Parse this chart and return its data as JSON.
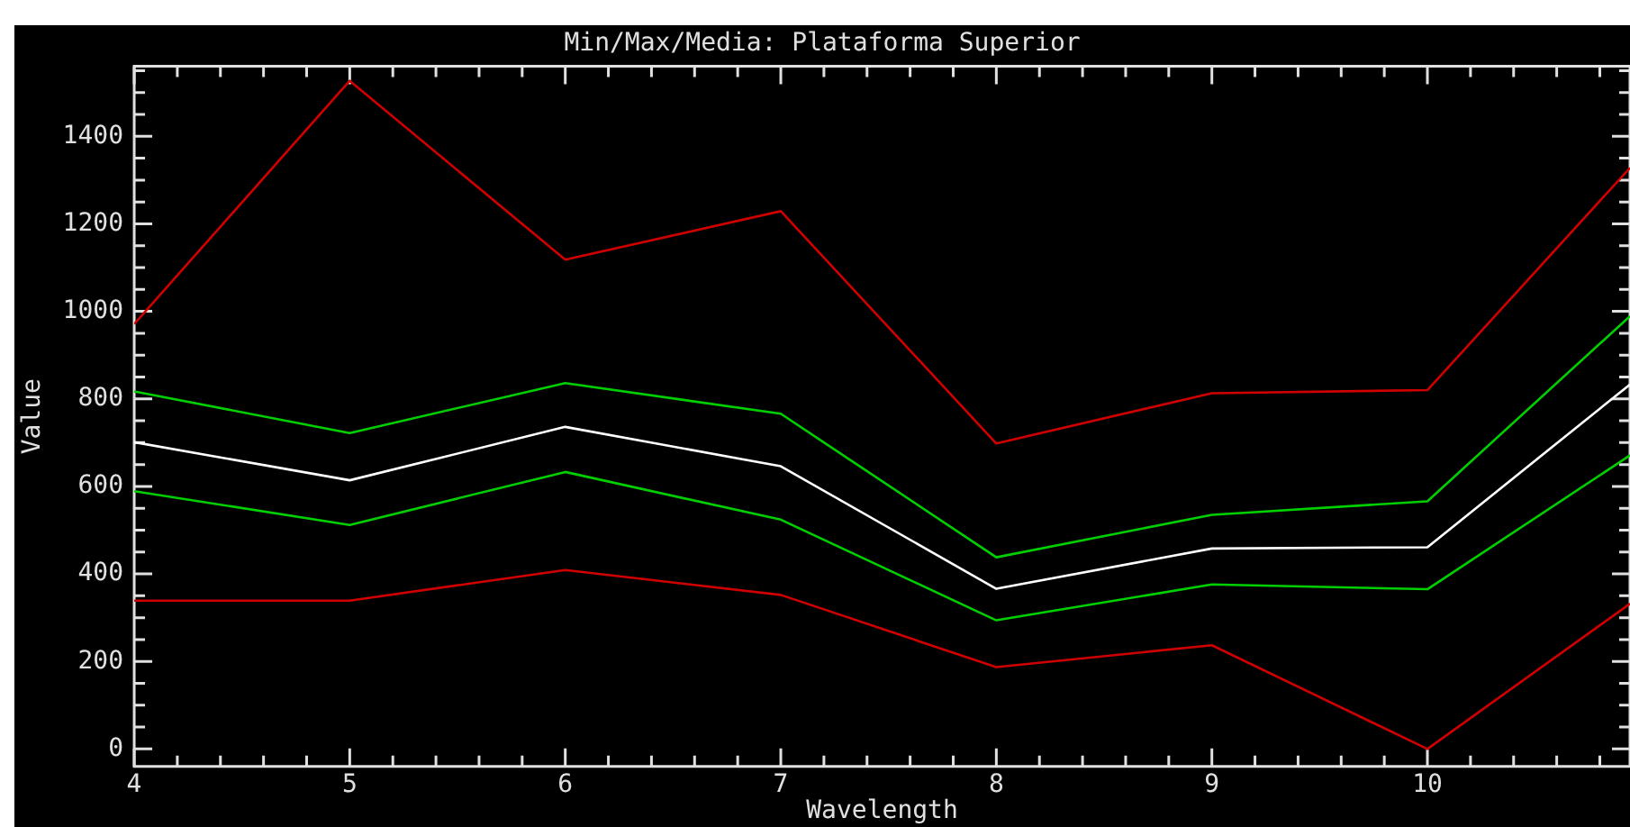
{
  "chart_data": {
    "type": "line",
    "title": "Min/Max/Media: Plataforma Superior",
    "xlabel": "Wavelength",
    "ylabel": "Value",
    "x": [
      4,
      5,
      6,
      7,
      8,
      9,
      10,
      10.94
    ],
    "series": [
      {
        "color": "#d00000",
        "values": [
          971,
          1527,
          1118,
          1229,
          698,
          813,
          820,
          1328
        ]
      },
      {
        "color": "#00d000",
        "values": [
          817,
          722,
          836,
          766,
          438,
          535,
          566,
          989
        ]
      },
      {
        "color": "#ffffff",
        "values": [
          701,
          614,
          736,
          646,
          366,
          458,
          461,
          833
        ]
      },
      {
        "color": "#00d000",
        "values": [
          589,
          512,
          633,
          524,
          294,
          376,
          365,
          671
        ]
      },
      {
        "color": "#d00000",
        "values": [
          339,
          339,
          409,
          352,
          187,
          237,
          0,
          332
        ]
      }
    ],
    "xlim": [
      4,
      10.94
    ],
    "ylim": [
      -40,
      1560
    ],
    "xticks": [
      4,
      {
        "value": 4.2,
        "label": null
      },
      {
        "value": 4.4,
        "label": null
      },
      {
        "value": 4.6,
        "label": null
      },
      {
        "value": 4.8,
        "label": null
      },
      5,
      {
        "value": 5.2,
        "label": null
      },
      {
        "value": 5.4,
        "label": null
      },
      {
        "value": 5.6,
        "label": null
      },
      {
        "value": 5.8,
        "label": null
      },
      6,
      {
        "value": 6.2,
        "label": null
      },
      {
        "value": 6.4,
        "label": null
      },
      {
        "value": 6.6,
        "label": null
      },
      {
        "value": 6.8,
        "label": null
      },
      7,
      {
        "value": 7.2,
        "label": null
      },
      {
        "value": 7.4,
        "label": null
      },
      {
        "value": 7.6,
        "label": null
      },
      {
        "value": 7.8,
        "label": null
      },
      8,
      {
        "value": 8.2,
        "label": null
      },
      {
        "value": 8.4,
        "label": null
      },
      {
        "value": 8.6,
        "label": null
      },
      {
        "value": 8.8,
        "label": null
      },
      9,
      {
        "value": 9.2,
        "label": null
      },
      {
        "value": 9.4,
        "label": null
      },
      {
        "value": 9.6,
        "label": null
      },
      {
        "value": 9.8,
        "label": null
      },
      10,
      {
        "value": 10.2,
        "label": null
      },
      {
        "value": 10.4,
        "label": null
      },
      {
        "value": 10.6,
        "label": null
      },
      {
        "value": 10.8,
        "label": null
      }
    ],
    "yticks": [
      0,
      {
        "value": 50,
        "label": null
      },
      {
        "value": 100,
        "label": null
      },
      {
        "value": 150,
        "label": null
      },
      200,
      {
        "value": 250,
        "label": null
      },
      {
        "value": 300,
        "label": null
      },
      {
        "value": 350,
        "label": null
      },
      400,
      {
        "value": 450,
        "label": null
      },
      {
        "value": 500,
        "label": null
      },
      {
        "value": 550,
        "label": null
      },
      600,
      {
        "value": 650,
        "label": null
      },
      {
        "value": 700,
        "label": null
      },
      {
        "value": 750,
        "label": null
      },
      800,
      {
        "value": 850,
        "label": null
      },
      {
        "value": 900,
        "label": null
      },
      {
        "value": 950,
        "label": null
      },
      1000,
      {
        "value": 1050,
        "label": null
      },
      {
        "value": 1100,
        "label": null
      },
      {
        "value": 1150,
        "label": null
      },
      1200,
      {
        "value": 1250,
        "label": null
      },
      {
        "value": 1300,
        "label": null
      },
      {
        "value": 1350,
        "label": null
      },
      1400,
      {
        "value": 1450,
        "label": null
      },
      {
        "value": 1500,
        "label": null
      },
      {
        "value": 1550,
        "label": null
      }
    ],
    "grid": false,
    "legend": false,
    "marker": "none",
    "line_style": "solid"
  }
}
